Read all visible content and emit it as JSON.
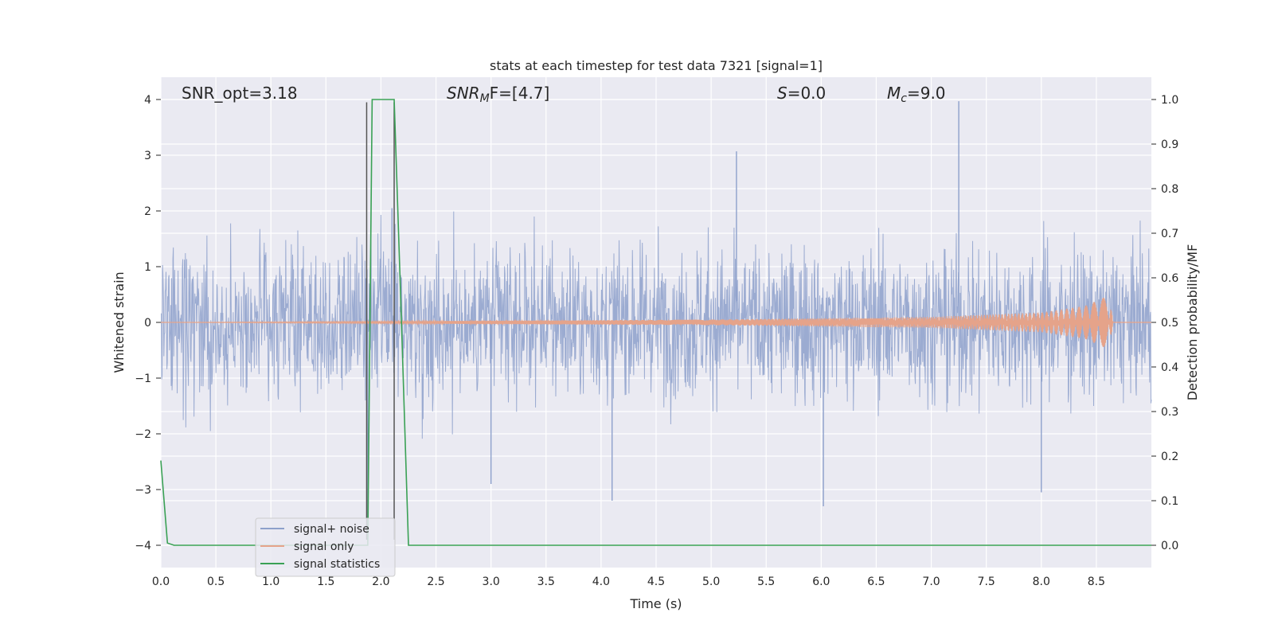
{
  "chart_data": {
    "type": "line",
    "title": "stats at each timestep for test data 7321 [signal=1]",
    "xlabel": "Time (s)",
    "ylabel_left": "Whitened strain",
    "ylabel_right": "Detection probability/MF",
    "xlim": [
      0.0,
      9.0
    ],
    "ylim_left": [
      -4.4,
      4.4
    ],
    "ylim_right": [
      -0.05,
      1.05
    ],
    "x_ticks": [
      "0.0",
      "0.5",
      "1.0",
      "1.5",
      "2.0",
      "2.5",
      "3.0",
      "3.5",
      "4.0",
      "4.5",
      "5.0",
      "5.5",
      "6.0",
      "6.5",
      "7.0",
      "7.5",
      "8.0",
      "8.5"
    ],
    "y_left_ticks": [
      "−4",
      "−3",
      "−2",
      "−1",
      "0",
      "1",
      "2",
      "3",
      "4"
    ],
    "y_right_ticks": [
      "0.0",
      "0.1",
      "0.2",
      "0.3",
      "0.4",
      "0.5",
      "0.6",
      "0.7",
      "0.8",
      "0.9",
      "1.0"
    ],
    "grid": true,
    "legend_position": "lower-left",
    "annotations": {
      "snr_opt": "SNR_opt=3.18",
      "snr_mf_main": "SNR",
      "snr_mf_sub": "M",
      "snr_mf_tail": "F=[4.7]",
      "s_main": "S",
      "s_tail": "=0.0",
      "mc_main": "M",
      "mc_sub": "c",
      "mc_tail": "=9.0"
    },
    "series": [
      {
        "name": "signal+ noise",
        "color": "#8da0cb",
        "description_values": {
          "envelope_typical_abs": 1.6,
          "peaks": [
            [
              1.88,
              -3.9
            ],
            [
              2.1,
              2.05
            ],
            [
              7.25,
              3.97
            ],
            [
              5.23,
              3.07
            ],
            [
              8.0,
              -3.05
            ],
            [
              6.02,
              -3.3
            ],
            [
              3.0,
              -2.9
            ],
            [
              4.1,
              -3.2
            ]
          ]
        }
      },
      {
        "name": "signal only",
        "color": "#e5a38a",
        "chirp_amplitude": [
          [
            0.0,
            0.0
          ],
          [
            5.0,
            0.05
          ],
          [
            7.0,
            0.1
          ],
          [
            8.0,
            0.18
          ],
          [
            8.4,
            0.3
          ],
          [
            8.63,
            0.5
          ],
          [
            8.65,
            0.0
          ]
        ]
      },
      {
        "name": "signal statistics",
        "color": "#3aa155",
        "axis": "right",
        "x": [
          0.0,
          0.06,
          0.12,
          0.2,
          1.85,
          1.88,
          1.92,
          2.12,
          2.18,
          2.25,
          9.0
        ],
        "y": [
          0.19,
          0.005,
          0.0,
          0.0,
          0.0,
          0.0,
          1.0,
          1.0,
          0.55,
          0.0,
          0.0
        ]
      }
    ],
    "vertical_lines": [
      {
        "x": 1.87,
        "y_top": 3.95,
        "y_bottom": -3.9
      },
      {
        "x": 2.12,
        "y_top": 3.95,
        "y_bottom": -3.9
      }
    ]
  }
}
